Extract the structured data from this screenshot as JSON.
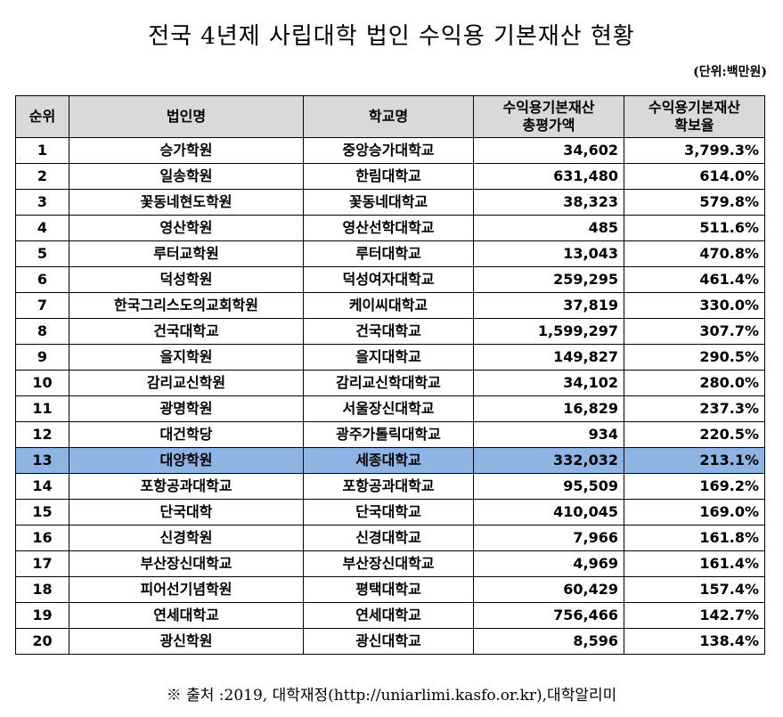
{
  "title": "전국 4년제 사립대학 법인 수익용 기본재산 현황",
  "unit": "(단위:백만원)",
  "highlight_color": "#8db4e2",
  "header_color": "#d9d9d9",
  "table": {
    "columns": [
      {
        "label": "순위"
      },
      {
        "label": "법인명"
      },
      {
        "label": "학교명"
      },
      {
        "label_line1": "수익용기본재산",
        "label_line2": "총평가액"
      },
      {
        "label_line1": "수익용기본재산",
        "label_line2": "확보율"
      }
    ],
    "rows": [
      {
        "rank": "1",
        "corp": "승가학원",
        "school": "중앙승가대학교",
        "value": "34,602",
        "rate": "3,799.3%"
      },
      {
        "rank": "2",
        "corp": "일송학원",
        "school": "한림대학교",
        "value": "631,480",
        "rate": "614.0%"
      },
      {
        "rank": "3",
        "corp": "꽃동네현도학원",
        "school": "꽃동네대학교",
        "value": "38,323",
        "rate": "579.8%"
      },
      {
        "rank": "4",
        "corp": "영산학원",
        "school": "영산선학대학교",
        "value": "485",
        "rate": "511.6%"
      },
      {
        "rank": "5",
        "corp": "루터교학원",
        "school": "루터대학교",
        "value": "13,043",
        "rate": "470.8%"
      },
      {
        "rank": "6",
        "corp": "덕성학원",
        "school": "덕성여자대학교",
        "value": "259,295",
        "rate": "461.4%"
      },
      {
        "rank": "7",
        "corp": "한국그리스도의교회학원",
        "school": "케이씨대학교",
        "value": "37,819",
        "rate": "330.0%"
      },
      {
        "rank": "8",
        "corp": "건국대학교",
        "school": "건국대학교",
        "value": "1,599,297",
        "rate": "307.7%"
      },
      {
        "rank": "9",
        "corp": "을지학원",
        "school": "을지대학교",
        "value": "149,827",
        "rate": "290.5%"
      },
      {
        "rank": "10",
        "corp": "감리교신학원",
        "school": "감리교신학대학교",
        "value": "34,102",
        "rate": "280.0%"
      },
      {
        "rank": "11",
        "corp": "광명학원",
        "school": "서울장신대학교",
        "value": "16,829",
        "rate": "237.3%"
      },
      {
        "rank": "12",
        "corp": "대건학당",
        "school": "광주가톨릭대학교",
        "value": "934",
        "rate": "220.5%"
      },
      {
        "rank": "13",
        "corp": "대양학원",
        "school": "세종대학교",
        "value": "332,032",
        "rate": "213.1%",
        "highlighted": true
      },
      {
        "rank": "14",
        "corp": "포항공과대학교",
        "school": "포항공과대학교",
        "value": "95,509",
        "rate": "169.2%"
      },
      {
        "rank": "15",
        "corp": "단국대학",
        "school": "단국대학교",
        "value": "410,045",
        "rate": "169.0%"
      },
      {
        "rank": "16",
        "corp": "신경학원",
        "school": "신경대학교",
        "value": "7,966",
        "rate": "161.8%"
      },
      {
        "rank": "17",
        "corp": "부산장신대학교",
        "school": "부산장신대학교",
        "value": "4,969",
        "rate": "161.4%"
      },
      {
        "rank": "18",
        "corp": "피어선기념학원",
        "school": "평택대학교",
        "value": "60,429",
        "rate": "157.4%"
      },
      {
        "rank": "19",
        "corp": "연세대학교",
        "school": "연세대학교",
        "value": "756,466",
        "rate": "142.7%"
      },
      {
        "rank": "20",
        "corp": "광신학원",
        "school": "광신대학교",
        "value": "8,596",
        "rate": "138.4%"
      }
    ]
  },
  "footnote": "※ 출처 :2019, 대학재정(http://uniarlimi.kasfo.or.kr),대학알리미"
}
